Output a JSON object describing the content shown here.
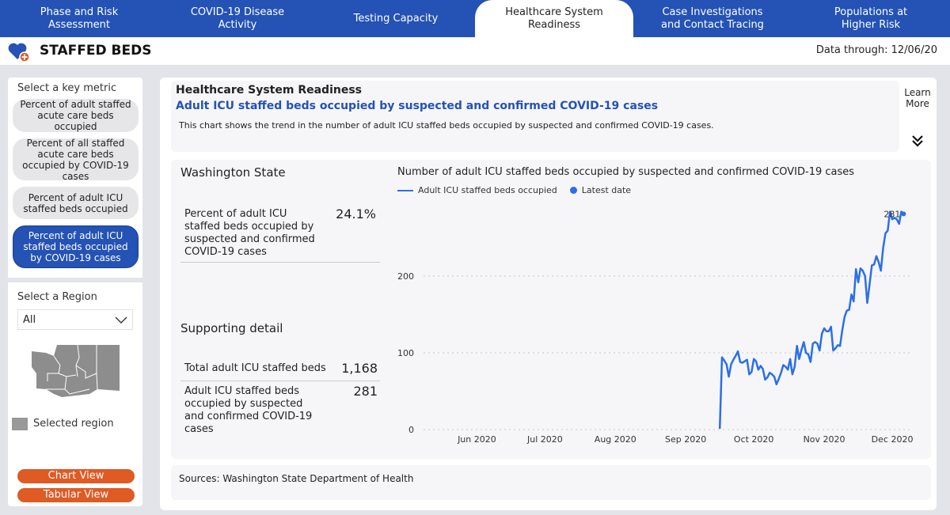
{
  "nav": {
    "tabs": [
      {
        "label": "Phase and Risk\nAssessment",
        "active": false
      },
      {
        "label": "COVID-19 Disease\nActivity",
        "active": false
      },
      {
        "label": "Testing Capacity",
        "active": false
      },
      {
        "label": "Healthcare System\nReadiness",
        "active": true
      },
      {
        "label": "Case Investigations\nand Contact Tracing",
        "active": false
      },
      {
        "label": "Populations at\nHigher Risk",
        "active": false
      }
    ],
    "color": "#2452b5"
  },
  "header": {
    "icon": "heart-plus-icon",
    "title": "STAFFED BEDS",
    "data_through": "Data through: 12/06/20"
  },
  "sidebar": {
    "metric_label": "Select a key metric",
    "metrics": [
      {
        "label": "Percent of adult staffed acute care beds occupied",
        "active": false
      },
      {
        "label": "Percent of all staffed acute care beds occupied by COVID-19 cases",
        "active": false
      },
      {
        "label": "Percent of adult ICU staffed beds occupied",
        "active": false
      },
      {
        "label": "Percent of adult ICU staffed beds occupied by COVID-19 cases",
        "active": true
      }
    ],
    "region_label": "Select a Region",
    "region_value": "All",
    "map_legend": "Selected region",
    "chart_view": "Chart View",
    "tabular_view": "Tabular View"
  },
  "info": {
    "heading": "Healthcare System Readiness",
    "subtitle": "Adult ICU staffed beds occupied by suspected and confirmed COVID-19 cases",
    "description": "This chart shows the trend in the number of adult ICU staffed beds occupied by suspected and confirmed COVID-19 cases.",
    "learn_more": "Learn More"
  },
  "summary": {
    "region": "Washington State",
    "metric_label": "Percent of adult ICU staffed beds occupied by suspected and confirmed COVID-19 cases",
    "metric_value": "24.1%",
    "supporting_heading": "Supporting detail",
    "total_label": "Total adult ICU staffed beds",
    "total_value": "1,168",
    "occupied_label": "Adult ICU staffed beds occupied by suspected and confirmed COVID-19 cases",
    "occupied_value": "281"
  },
  "sources": "Sources: Washington State Department of Health",
  "chart_data": {
    "type": "line",
    "title": "Number of adult ICU staffed beds occupied by suspected and confirmed COVID-19 cases",
    "legend": [
      {
        "name": "Adult ICU staffed beds occupied",
        "marker": "line"
      },
      {
        "name": "Latest date",
        "marker": "dot"
      }
    ],
    "legend_placement": "top-left",
    "color": "#2b6fe8",
    "xlim": [
      "2020-05-05",
      "2020-12-09"
    ],
    "ylim": [
      0,
      300
    ],
    "yticks": [
      0,
      100,
      200
    ],
    "xticks": [
      {
        "date": "2020-06-01",
        "label": "Jun 2020"
      },
      {
        "date": "2020-07-01",
        "label": "Jul 2020"
      },
      {
        "date": "2020-08-01",
        "label": "Aug 2020"
      },
      {
        "date": "2020-09-01",
        "label": "Sep 2020"
      },
      {
        "date": "2020-10-01",
        "label": "Oct 2020"
      },
      {
        "date": "2020-11-01",
        "label": "Nov 2020"
      },
      {
        "date": "2020-12-01",
        "label": "Dec 2020"
      }
    ],
    "grid": "horizontal dotted",
    "latest_label": "281",
    "x": [
      "2020-09-16",
      "2020-09-17",
      "2020-09-18",
      "2020-09-19",
      "2020-09-20",
      "2020-09-21",
      "2020-09-22",
      "2020-09-23",
      "2020-09-24",
      "2020-09-25",
      "2020-09-26",
      "2020-09-27",
      "2020-09-28",
      "2020-09-29",
      "2020-09-30",
      "2020-10-01",
      "2020-10-02",
      "2020-10-03",
      "2020-10-04",
      "2020-10-05",
      "2020-10-06",
      "2020-10-07",
      "2020-10-08",
      "2020-10-09",
      "2020-10-10",
      "2020-10-11",
      "2020-10-12",
      "2020-10-13",
      "2020-10-14",
      "2020-10-15",
      "2020-10-16",
      "2020-10-17",
      "2020-10-18",
      "2020-10-19",
      "2020-10-20",
      "2020-10-21",
      "2020-10-22",
      "2020-10-23",
      "2020-10-24",
      "2020-10-25",
      "2020-10-26",
      "2020-10-27",
      "2020-10-28",
      "2020-10-29",
      "2020-10-30",
      "2020-10-31",
      "2020-11-01",
      "2020-11-02",
      "2020-11-03",
      "2020-11-04",
      "2020-11-05",
      "2020-11-06",
      "2020-11-07",
      "2020-11-08",
      "2020-11-09",
      "2020-11-10",
      "2020-11-11",
      "2020-11-12",
      "2020-11-13",
      "2020-11-14",
      "2020-11-15",
      "2020-11-16",
      "2020-11-17",
      "2020-11-18",
      "2020-11-19",
      "2020-11-20",
      "2020-11-21",
      "2020-11-22",
      "2020-11-23",
      "2020-11-24",
      "2020-11-25",
      "2020-11-26",
      "2020-11-27",
      "2020-11-28",
      "2020-11-29",
      "2020-11-30",
      "2020-12-01",
      "2020-12-02",
      "2020-12-03",
      "2020-12-04",
      "2020-12-05",
      "2020-12-06"
    ],
    "y": [
      1,
      94,
      90,
      85,
      69,
      85,
      91,
      96,
      102,
      88,
      87,
      89,
      91,
      72,
      75,
      92,
      89,
      78,
      83,
      79,
      65,
      68,
      74,
      72,
      69,
      59,
      66,
      74,
      84,
      82,
      78,
      92,
      72,
      82,
      109,
      92,
      104,
      114,
      100,
      98,
      88,
      112,
      114,
      112,
      103,
      125,
      132,
      128,
      128,
      134,
      103,
      106,
      110,
      109,
      130,
      147,
      155,
      156,
      176,
      167,
      209,
      192,
      210,
      207,
      200,
      165,
      189,
      214,
      215,
      226,
      218,
      207,
      237,
      256,
      259,
      284,
      274,
      276,
      274,
      268,
      284,
      281
    ]
  }
}
